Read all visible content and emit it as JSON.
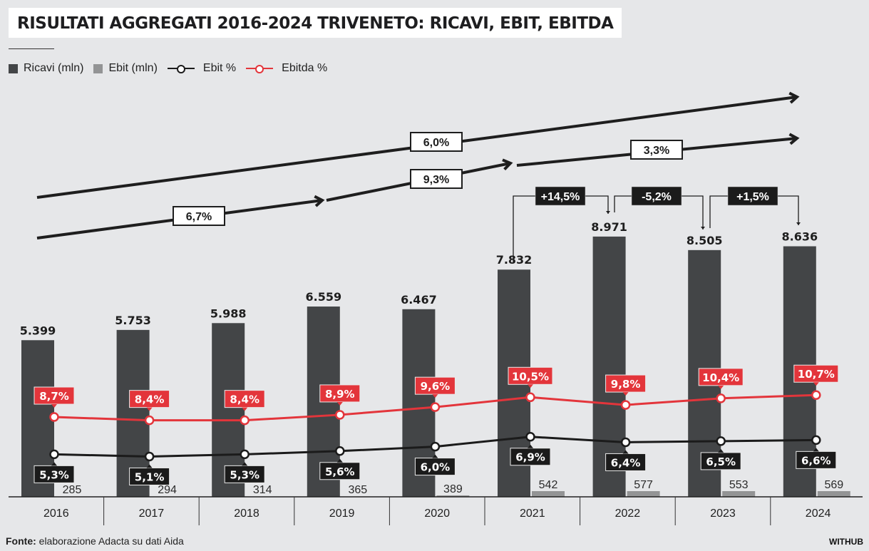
{
  "title": "RISULTATI AGGREGATI 2016-2024 TRIVENETO: RICAVI, EBIT, EBITDA",
  "legend": {
    "ricavi": "Ricavi (mln)",
    "ebit": "Ebit (mln)",
    "ebit_pct": "Ebit %",
    "ebitda_pct": "Ebitda %"
  },
  "colors": {
    "ricavi": "#434547",
    "ebit": "#939495",
    "ebit_pct": "#1b1b1b",
    "ebitda_pct": "#e3353b",
    "background": "#e6e7e9"
  },
  "source": {
    "label": "Fonte:",
    "text": "elaborazione Adacta su dati Aida"
  },
  "brand": "WITHUB",
  "chart_data": {
    "type": "bar",
    "title": "RISULTATI AGGREGATI 2016-2024 TRIVENETO: RICAVI, EBIT, EBITDA",
    "xlabel": "",
    "ylabel": "",
    "grid": false,
    "legend_position": "top-left",
    "categories": [
      "2016",
      "2017",
      "2018",
      "2019",
      "2020",
      "2021",
      "2022",
      "2023",
      "2024"
    ],
    "series": [
      {
        "name": "Ricavi (mln)",
        "type": "bar",
        "values": [
          5399,
          5753,
          5988,
          6559,
          6467,
          7832,
          8971,
          8505,
          8636
        ],
        "labels": [
          "5.399",
          "5.753",
          "5.988",
          "6.559",
          "6.467",
          "7.832",
          "8.971",
          "8.505",
          "8.636"
        ]
      },
      {
        "name": "Ebit (mln)",
        "type": "bar",
        "values": [
          285,
          294,
          314,
          365,
          389,
          542,
          577,
          553,
          569
        ],
        "labels": [
          "285",
          "294",
          "314",
          "365",
          "389",
          "542",
          "577",
          "553",
          "569"
        ]
      },
      {
        "name": "Ebit %",
        "type": "line",
        "values": [
          5.3,
          5.1,
          5.3,
          5.6,
          6.0,
          6.9,
          6.4,
          6.5,
          6.6
        ],
        "labels": [
          "5,3%",
          "5,1%",
          "5,3%",
          "5,6%",
          "6,0%",
          "6,9%",
          "6,4%",
          "6,5%",
          "6,6%"
        ]
      },
      {
        "name": "Ebitda %",
        "type": "line",
        "values": [
          8.7,
          8.4,
          8.4,
          8.9,
          9.6,
          10.5,
          9.8,
          10.4,
          10.7
        ],
        "labels": [
          "8,7%",
          "8,4%",
          "8,4%",
          "8,9%",
          "9,6%",
          "10,5%",
          "9,8%",
          "10,4%",
          "10,7%"
        ]
      }
    ],
    "growth_arrows": [
      {
        "label": "6,0%",
        "from": "2016",
        "to": "2024",
        "row": "upper"
      },
      {
        "label": "6,7%",
        "from": "2016",
        "to": "2019",
        "row": "lower"
      },
      {
        "label": "9,3%",
        "from": "2019",
        "to": "2021",
        "row": "lower"
      },
      {
        "label": "3,3%",
        "from": "2021",
        "to": "2024",
        "row": "lower"
      }
    ],
    "yoy_changes": [
      {
        "label": "+14,5%",
        "from": "2021",
        "to": "2022"
      },
      {
        "label": "-5,2%",
        "from": "2022",
        "to": "2023"
      },
      {
        "label": "+1,5%",
        "from": "2023",
        "to": "2024"
      }
    ]
  }
}
